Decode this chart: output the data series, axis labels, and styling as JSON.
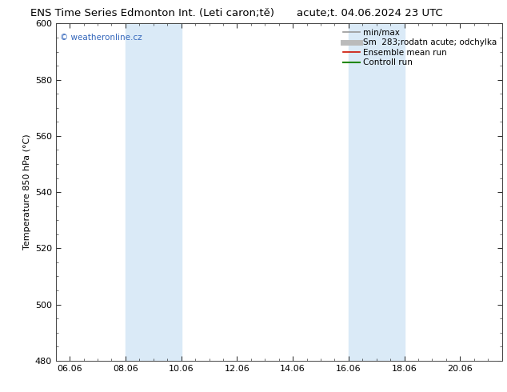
{
  "title_left": "ENS Time Series Edmonton Int. (Leti caron;tě)",
  "title_right": "acute;t. 04.06.2024 23 UTC",
  "ylabel": "Temperature 850 hPa (°C)",
  "xtick_labels": [
    "06.06",
    "08.06",
    "10.06",
    "12.06",
    "14.06",
    "16.06",
    "18.06",
    "20.06"
  ],
  "ylim": [
    480,
    600
  ],
  "ytick_positions": [
    480,
    500,
    520,
    540,
    560,
    580,
    600
  ],
  "ytick_labels": [
    "480",
    "500",
    "520",
    "540",
    "560",
    "580",
    "600"
  ],
  "shade_bands": [
    {
      "x_start": 2.0,
      "x_end": 4.0
    },
    {
      "x_start": 10.0,
      "x_end": 12.0
    }
  ],
  "shade_color": "#daeaf7",
  "background_color": "#ffffff",
  "watermark_text": "© weatheronline.cz",
  "watermark_color": "#3366bb",
  "legend_entries": [
    {
      "label": "min/max",
      "color": "#999999",
      "lw": 1.2,
      "style": "-"
    },
    {
      "label": "Sm  283;rodatn acute; odchylka",
      "color": "#bbbbbb",
      "lw": 5,
      "style": "-"
    },
    {
      "label": "Ensemble mean run",
      "color": "#cc1100",
      "lw": 1.2,
      "style": "-"
    },
    {
      "label": "Controll run",
      "color": "#228800",
      "lw": 1.5,
      "style": "-"
    }
  ],
  "title_fontsize": 9.5,
  "axis_label_fontsize": 8,
  "tick_fontsize": 8,
  "legend_fontsize": 7.5,
  "watermark_fontsize": 7.5,
  "xlim": [
    -0.5,
    15.5
  ],
  "x_num_ticks": 8,
  "x_step": 2.0
}
